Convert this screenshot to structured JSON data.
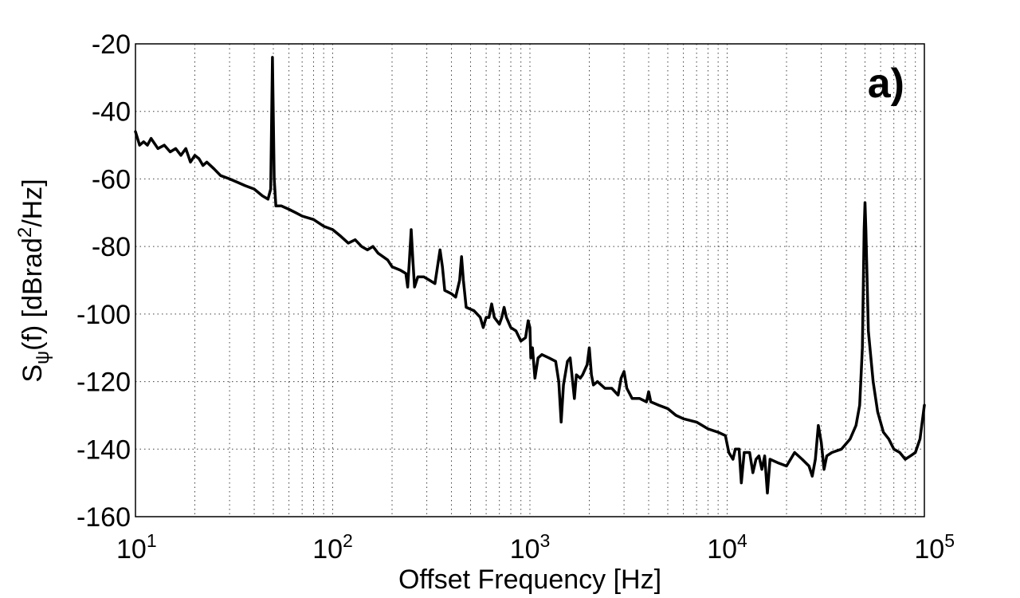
{
  "chart_data": {
    "type": "line",
    "xscale": "log",
    "xlim": [
      10,
      100000
    ],
    "ylim": [
      -160,
      -20
    ],
    "grid": true,
    "panel_label": "a)",
    "xlabel": "Offset Frequency [Hz]",
    "ylabel": {
      "base": "S",
      "subscript": "ψ",
      "mid": "(f) [dBrad",
      "superscript": "2",
      "end": "/Hz]"
    },
    "xticks": [
      {
        "value": 10,
        "base": "10",
        "exp": "1"
      },
      {
        "value": 100,
        "base": "10",
        "exp": "2"
      },
      {
        "value": 1000,
        "base": "10",
        "exp": "3"
      },
      {
        "value": 10000,
        "base": "10",
        "exp": "4"
      },
      {
        "value": 100000,
        "base": "10",
        "exp": "5"
      }
    ],
    "yticks": [
      {
        "value": -20,
        "label": "-20"
      },
      {
        "value": -40,
        "label": "-40"
      },
      {
        "value": -60,
        "label": "-60"
      },
      {
        "value": -80,
        "label": "-80"
      },
      {
        "value": -100,
        "label": "-100"
      },
      {
        "value": -120,
        "label": "-120"
      },
      {
        "value": -140,
        "label": "-140"
      },
      {
        "value": -160,
        "label": "-160"
      }
    ],
    "series": [
      {
        "color": "#000000",
        "points": [
          [
            10,
            -46
          ],
          [
            10.5,
            -50
          ],
          [
            11,
            -49
          ],
          [
            11.5,
            -50
          ],
          [
            12,
            -48
          ],
          [
            13,
            -51
          ],
          [
            14,
            -50
          ],
          [
            15,
            -52
          ],
          [
            16,
            -51
          ],
          [
            17,
            -53
          ],
          [
            18,
            -51
          ],
          [
            19,
            -55
          ],
          [
            20,
            -53
          ],
          [
            21,
            -54
          ],
          [
            22,
            -56
          ],
          [
            23,
            -55
          ],
          [
            25,
            -57
          ],
          [
            27,
            -59
          ],
          [
            30,
            -60
          ],
          [
            33,
            -61
          ],
          [
            36,
            -62
          ],
          [
            40,
            -63
          ],
          [
            44,
            -65
          ],
          [
            47,
            -66
          ],
          [
            48.5,
            -63
          ],
          [
            49.5,
            -24
          ],
          [
            50.5,
            -60
          ],
          [
            51.5,
            -68
          ],
          [
            55,
            -68
          ],
          [
            60,
            -69
          ],
          [
            65,
            -70
          ],
          [
            70,
            -71
          ],
          [
            80,
            -72
          ],
          [
            90,
            -74
          ],
          [
            100,
            -75
          ],
          [
            110,
            -77
          ],
          [
            120,
            -79
          ],
          [
            130,
            -78
          ],
          [
            140,
            -80
          ],
          [
            150,
            -81
          ],
          [
            160,
            -80
          ],
          [
            170,
            -82
          ],
          [
            180,
            -83
          ],
          [
            190,
            -84
          ],
          [
            200,
            -86
          ],
          [
            220,
            -87
          ],
          [
            235,
            -88
          ],
          [
            240,
            -92
          ],
          [
            245,
            -84
          ],
          [
            250,
            -75
          ],
          [
            255,
            -84
          ],
          [
            260,
            -92
          ],
          [
            270,
            -89
          ],
          [
            290,
            -89
          ],
          [
            310,
            -90
          ],
          [
            330,
            -91
          ],
          [
            340,
            -86
          ],
          [
            350,
            -81
          ],
          [
            360,
            -86
          ],
          [
            370,
            -93
          ],
          [
            400,
            -94
          ],
          [
            420,
            -95
          ],
          [
            440,
            -90
          ],
          [
            450,
            -83
          ],
          [
            460,
            -90
          ],
          [
            475,
            -98
          ],
          [
            520,
            -99
          ],
          [
            560,
            -101
          ],
          [
            580,
            -104
          ],
          [
            600,
            -101
          ],
          [
            620,
            -101
          ],
          [
            640,
            -97
          ],
          [
            660,
            -101
          ],
          [
            700,
            -103
          ],
          [
            720,
            -101
          ],
          [
            740,
            -98
          ],
          [
            760,
            -101
          ],
          [
            800,
            -104
          ],
          [
            850,
            -105
          ],
          [
            900,
            -108
          ],
          [
            950,
            -107
          ],
          [
            980,
            -102
          ],
          [
            1000,
            -104
          ],
          [
            1010,
            -113
          ],
          [
            1030,
            -110
          ],
          [
            1060,
            -119
          ],
          [
            1100,
            -113
          ],
          [
            1150,
            -112
          ],
          [
            1250,
            -113
          ],
          [
            1350,
            -114
          ],
          [
            1400,
            -120
          ],
          [
            1440,
            -132
          ],
          [
            1480,
            -121
          ],
          [
            1550,
            -114
          ],
          [
            1600,
            -113
          ],
          [
            1680,
            -125
          ],
          [
            1720,
            -118
          ],
          [
            1800,
            -119
          ],
          [
            1850,
            -118
          ],
          [
            1950,
            -115
          ],
          [
            2000,
            -110
          ],
          [
            2050,
            -118
          ],
          [
            2100,
            -121
          ],
          [
            2200,
            -120
          ],
          [
            2400,
            -122
          ],
          [
            2600,
            -122
          ],
          [
            2800,
            -124
          ],
          [
            2900,
            -119
          ],
          [
            3000,
            -117
          ],
          [
            3100,
            -122
          ],
          [
            3300,
            -125
          ],
          [
            3600,
            -125
          ],
          [
            3900,
            -126
          ],
          [
            4000,
            -123
          ],
          [
            4100,
            -126
          ],
          [
            4500,
            -127
          ],
          [
            5000,
            -128
          ],
          [
            5500,
            -130
          ],
          [
            6000,
            -131
          ],
          [
            7000,
            -132
          ],
          [
            8000,
            -134
          ],
          [
            9000,
            -135
          ],
          [
            9800,
            -136
          ],
          [
            10200,
            -141
          ],
          [
            10700,
            -143
          ],
          [
            11000,
            -140
          ],
          [
            11500,
            -140
          ],
          [
            11800,
            -150
          ],
          [
            12200,
            -141
          ],
          [
            13000,
            -141
          ],
          [
            13500,
            -147
          ],
          [
            14000,
            -143
          ],
          [
            14500,
            -142
          ],
          [
            15000,
            -146
          ],
          [
            15500,
            -142
          ],
          [
            16000,
            -153
          ],
          [
            16500,
            -143
          ],
          [
            18000,
            -144
          ],
          [
            20000,
            -145
          ],
          [
            22000,
            -141
          ],
          [
            24000,
            -143
          ],
          [
            26000,
            -145
          ],
          [
            27000,
            -148
          ],
          [
            28000,
            -143
          ],
          [
            29000,
            -133
          ],
          [
            30000,
            -138
          ],
          [
            31000,
            -146
          ],
          [
            32000,
            -142
          ],
          [
            34000,
            -141
          ],
          [
            38000,
            -140
          ],
          [
            42000,
            -137
          ],
          [
            45000,
            -133
          ],
          [
            47000,
            -127
          ],
          [
            48500,
            -110
          ],
          [
            49500,
            -75
          ],
          [
            50000,
            -67
          ],
          [
            50500,
            -75
          ],
          [
            52000,
            -105
          ],
          [
            55000,
            -120
          ],
          [
            58000,
            -129
          ],
          [
            62000,
            -135
          ],
          [
            66000,
            -137
          ],
          [
            70000,
            -140
          ],
          [
            75000,
            -141
          ],
          [
            80000,
            -143
          ],
          [
            85000,
            -142
          ],
          [
            90000,
            -141
          ],
          [
            95000,
            -137
          ],
          [
            100000,
            -127
          ]
        ]
      }
    ]
  }
}
